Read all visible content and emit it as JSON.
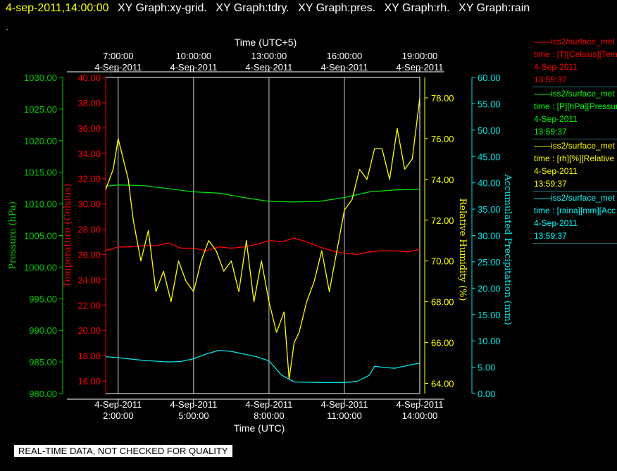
{
  "header": {
    "timestamp": "4-sep-2011,14:00:00",
    "tabs": [
      "XY Graph:xy-grid.",
      "XY Graph:tdry.",
      "XY Graph:pres.",
      "XY Graph:rh.",
      "XY Graph:rain"
    ],
    "dot": "."
  },
  "disclaimer": "REAL-TIME DATA, NOT CHECKED FOR QUALITY",
  "legend": [
    {
      "line": "——iss2/surface_met",
      "field": "time : [T][Celsius][Temp",
      "date": "4-Sep-2011",
      "time": "13:59:37",
      "color": "#ff0000"
    },
    {
      "line": "——iss2/surface_met",
      "field": "time : [P][hPa][Pressure",
      "date": "4-Sep-2011",
      "time": "13:59:37",
      "color": "#00ff00"
    },
    {
      "line": "——iss2/surface_met",
      "field": "time : [rh][%][Relative",
      "date": "4-Sep-2011",
      "time": "13:59:37",
      "color": "#ffff00"
    },
    {
      "line": "——iss2/surface_met",
      "field": "time : [raina][mm][Acc",
      "date": "4-Sep-2011",
      "time": "13:59:37",
      "color": "#00ffff"
    }
  ],
  "chart_data": {
    "type": "line",
    "x_unit": "hours UTC, 4-Sep-2011",
    "xlim": [
      1.5,
      14.0
    ],
    "x_axis_bottom": {
      "title": "Time (UTC)",
      "ticks": [
        {
          "x": 2,
          "date": "4-Sep-2011",
          "time": "2:00:00"
        },
        {
          "x": 5,
          "date": "4-Sep-2011",
          "time": "5:00:00"
        },
        {
          "x": 8,
          "date": "4-Sep-2011",
          "time": "8:00:00"
        },
        {
          "x": 11,
          "date": "4-Sep-2011",
          "time": "11:00:00"
        },
        {
          "x": 14,
          "date": "4-Sep-2011",
          "time": "14:00:00"
        }
      ]
    },
    "x_axis_top": {
      "title": "Time (UTC+5)",
      "ticks": [
        {
          "x": 2,
          "time": "7:00:00",
          "date": "4-Sep-2011"
        },
        {
          "x": 5,
          "time": "10:00:00",
          "date": "4-Sep-2011"
        },
        {
          "x": 8,
          "time": "13:00:00",
          "date": "4-Sep-2011"
        },
        {
          "x": 11,
          "time": "16:00:00",
          "date": "4-Sep-2011"
        },
        {
          "x": 14,
          "time": "19:00:00",
          "date": "4-Sep-2011"
        }
      ]
    },
    "vertical_grid": true,
    "axes": [
      {
        "id": "pres",
        "title": "Pressure (hPa)",
        "color": "#00cc00",
        "ylim": [
          980,
          1030
        ],
        "ticks": [
          "980.00",
          "985.00",
          "990.00",
          "995.00",
          "1000.00",
          "1005.00",
          "1010.00",
          "1015.00",
          "1020.00",
          "1025.00",
          "1030.00"
        ]
      },
      {
        "id": "temp",
        "title": "Temperature (Celsius)",
        "color": "#ff0000",
        "ylim": [
          15,
          40
        ],
        "ticks": [
          "16.00",
          "18.00",
          "20.00",
          "22.00",
          "24.00",
          "26.00",
          "28.00",
          "30.00",
          "32.00",
          "34.00",
          "36.00",
          "38.00",
          "40.00"
        ]
      },
      {
        "id": "rh",
        "title": "Relative Humidity (%)",
        "color": "#ffff00",
        "ylim": [
          63.5,
          79
        ],
        "ticks": [
          "64.00",
          "66.00",
          "68.00",
          "70.00",
          "72.00",
          "74.00",
          "76.00",
          "78.00"
        ]
      },
      {
        "id": "rain",
        "title": "Accumulated Precipitation (mm)",
        "color": "#00e5e5",
        "ylim": [
          0,
          60
        ],
        "ticks": [
          "0.00",
          "5.00",
          "10.00",
          "15.00",
          "20.00",
          "25.00",
          "30.00",
          "35.00",
          "40.00",
          "45.00",
          "50.00",
          "55.00",
          "60.00"
        ]
      }
    ],
    "series": [
      {
        "axis": "pres",
        "color": "#00dd00",
        "x": [
          1.5,
          2.0,
          3.0,
          4.0,
          5.0,
          6.0,
          7.0,
          8.0,
          9.0,
          10.0,
          11.0,
          12.0,
          13.0,
          14.0
        ],
        "y": [
          1012.8,
          1013.0,
          1012.9,
          1012.4,
          1011.9,
          1011.7,
          1011.0,
          1010.4,
          1010.3,
          1010.4,
          1011.0,
          1011.9,
          1012.2,
          1012.3
        ]
      },
      {
        "axis": "temp",
        "color": "#ff0000",
        "x": [
          1.5,
          2.0,
          2.5,
          3.0,
          3.5,
          4.0,
          4.5,
          5.0,
          5.5,
          6.0,
          6.5,
          7.0,
          7.5,
          8.0,
          8.5,
          9.0,
          9.5,
          10.0,
          10.5,
          11.0,
          11.5,
          12.0,
          12.5,
          13.0,
          13.5,
          14.0
        ],
        "y": [
          26.3,
          26.6,
          26.6,
          26.7,
          26.7,
          26.9,
          26.5,
          26.5,
          26.3,
          26.6,
          26.5,
          26.6,
          26.8,
          27.1,
          27.0,
          27.3,
          27.0,
          26.6,
          26.3,
          26.1,
          26.0,
          26.2,
          26.3,
          26.3,
          26.2,
          26.4
        ]
      },
      {
        "axis": "rh",
        "color": "#ffff00",
        "x": [
          1.5,
          1.8,
          2.0,
          2.2,
          2.4,
          2.6,
          2.9,
          3.2,
          3.5,
          3.8,
          4.1,
          4.4,
          4.7,
          5.0,
          5.3,
          5.6,
          5.9,
          6.2,
          6.5,
          6.8,
          7.1,
          7.4,
          7.7,
          8.0,
          8.3,
          8.6,
          8.8,
          9.0,
          9.2,
          9.5,
          9.8,
          10.1,
          10.4,
          10.7,
          11.0,
          11.3,
          11.6,
          11.9,
          12.2,
          12.5,
          12.8,
          13.1,
          13.4,
          13.7,
          14.0
        ],
        "y": [
          73.5,
          74.5,
          76.0,
          75.0,
          74.0,
          72.0,
          70.0,
          71.5,
          68.5,
          69.5,
          68.0,
          70.0,
          69.0,
          68.5,
          70.0,
          71.0,
          70.5,
          69.5,
          70.0,
          68.5,
          71.0,
          68.0,
          70.0,
          68.0,
          66.5,
          67.5,
          64.2,
          66.0,
          66.5,
          68.0,
          69.0,
          70.5,
          68.5,
          70.5,
          72.5,
          73.0,
          74.5,
          74.0,
          75.5,
          75.5,
          74.0,
          76.5,
          74.5,
          75.0,
          78.0
        ]
      },
      {
        "axis": "rain",
        "color": "#00e5e5",
        "x": [
          1.5,
          2.0,
          3.0,
          4.0,
          4.5,
          5.0,
          5.5,
          6.0,
          6.5,
          7.0,
          7.5,
          8.0,
          8.5,
          9.0,
          10.0,
          11.0,
          11.5,
          12.0,
          12.2,
          12.5,
          13.0,
          13.5,
          14.0
        ],
        "y": [
          7.0,
          6.8,
          6.3,
          6.0,
          6.1,
          6.6,
          7.5,
          8.2,
          8.0,
          7.5,
          7.0,
          6.2,
          3.5,
          2.2,
          2.1,
          2.1,
          2.3,
          3.5,
          5.2,
          5.0,
          4.8,
          5.3,
          5.8
        ]
      }
    ]
  }
}
